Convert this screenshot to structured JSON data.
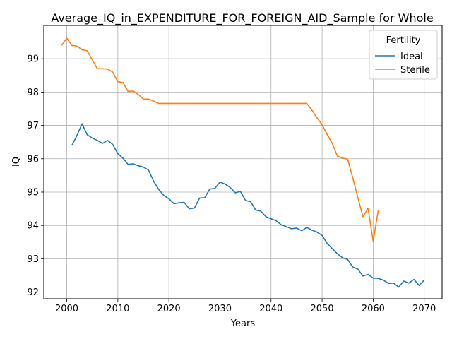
{
  "chart_data": {
    "type": "line",
    "title": "Average_IQ_in_EXPENDITURE_FOR_FOREIGN_AID_Sample for Whole",
    "xlabel": "Years",
    "ylabel": "IQ",
    "xlim": [
      1995.5,
      2073.5
    ],
    "ylim": [
      91.8,
      100.0
    ],
    "xticks": [
      2000,
      2010,
      2020,
      2030,
      2040,
      2050,
      2060,
      2070
    ],
    "yticks": [
      92,
      93,
      94,
      95,
      96,
      97,
      98,
      99
    ],
    "grid": true,
    "legend": {
      "title": "Fertility",
      "placement": "top-right"
    },
    "series": [
      {
        "name": "Ideal",
        "color": "#1f77b4",
        "x": [
          2001,
          2002,
          2003,
          2004,
          2005,
          2006,
          2007,
          2008,
          2009,
          2010,
          2011,
          2012,
          2013,
          2014,
          2015,
          2016,
          2017,
          2018,
          2019,
          2020,
          2021,
          2022,
          2023,
          2024,
          2025,
          2026,
          2027,
          2028,
          2029,
          2030,
          2031,
          2032,
          2033,
          2034,
          2035,
          2036,
          2037,
          2038,
          2039,
          2040,
          2041,
          2042,
          2043,
          2044,
          2045,
          2046,
          2047,
          2048,
          2049,
          2050,
          2051,
          2052,
          2053,
          2054,
          2055,
          2056,
          2057,
          2058,
          2059,
          2060,
          2061,
          2062,
          2063,
          2064,
          2065,
          2066,
          2067,
          2068,
          2069,
          2070
        ],
        "y": [
          96.4,
          96.7,
          97.05,
          96.72,
          96.62,
          96.55,
          96.46,
          96.55,
          96.43,
          96.15,
          96.02,
          95.83,
          95.85,
          95.79,
          95.75,
          95.66,
          95.33,
          95.08,
          94.9,
          94.8,
          94.65,
          94.68,
          94.69,
          94.5,
          94.52,
          94.82,
          94.83,
          95.09,
          95.11,
          95.3,
          95.24,
          95.14,
          94.98,
          95.02,
          94.75,
          94.71,
          94.46,
          94.43,
          94.26,
          94.2,
          94.14,
          94.02,
          93.96,
          93.9,
          93.92,
          93.84,
          93.94,
          93.86,
          93.8,
          93.7,
          93.46,
          93.3,
          93.15,
          93.03,
          92.98,
          92.75,
          92.69,
          92.48,
          92.53,
          92.42,
          92.41,
          92.36,
          92.26,
          92.27,
          92.15,
          92.33,
          92.27,
          92.38,
          92.2,
          92.36
        ]
      },
      {
        "name": "Sterile",
        "color": "#ff7f0e",
        "x": [
          1999,
          2000,
          2001,
          2002,
          2003,
          2004,
          2005,
          2006,
          2007,
          2008,
          2009,
          2010,
          2011,
          2012,
          2013,
          2014,
          2015,
          2016,
          2017,
          2018,
          2019,
          2020,
          2021,
          2022,
          2023,
          2024,
          2025,
          2026,
          2027,
          2028,
          2029,
          2030,
          2031,
          2032,
          2033,
          2034,
          2035,
          2036,
          2037,
          2038,
          2039,
          2040,
          2041,
          2042,
          2043,
          2044,
          2045,
          2046,
          2047,
          2048,
          2049,
          2050,
          2051,
          2052,
          2053,
          2054,
          2055,
          2056,
          2057,
          2058,
          2059,
          2060,
          2061
        ],
        "y": [
          99.4,
          99.62,
          99.4,
          99.38,
          99.27,
          99.24,
          98.97,
          98.7,
          98.7,
          98.69,
          98.6,
          98.31,
          98.29,
          98.02,
          98.03,
          97.93,
          97.79,
          97.79,
          97.73,
          97.66,
          97.66,
          97.66,
          97.66,
          97.66,
          97.66,
          97.66,
          97.66,
          97.66,
          97.66,
          97.66,
          97.66,
          97.66,
          97.66,
          97.66,
          97.66,
          97.66,
          97.66,
          97.66,
          97.66,
          97.66,
          97.66,
          97.66,
          97.66,
          97.66,
          97.66,
          97.66,
          97.66,
          97.66,
          97.66,
          97.46,
          97.23,
          97.02,
          96.73,
          96.45,
          96.08,
          96.02,
          95.99,
          95.43,
          94.84,
          94.26,
          94.52,
          93.52,
          94.46
        ]
      }
    ]
  }
}
